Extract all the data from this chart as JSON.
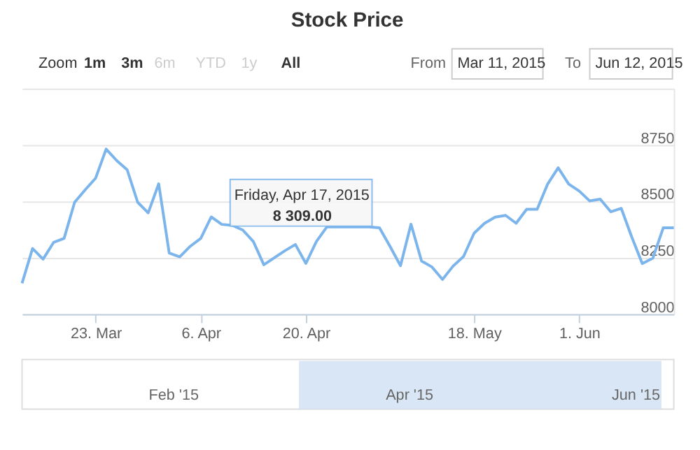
{
  "chart_data": {
    "type": "line",
    "title": "Stock Price",
    "categories": [
      null,
      null,
      null,
      null,
      null,
      null,
      null,
      "23. Mar",
      null,
      null,
      null,
      null,
      null,
      null,
      null,
      null,
      null,
      "6. Apr",
      null,
      null,
      null,
      null,
      null,
      null,
      null,
      null,
      null,
      "20. Apr",
      null,
      null,
      null,
      null,
      null,
      null,
      null,
      null,
      null,
      null,
      null,
      null,
      null,
      null,
      null,
      "18. May",
      null,
      null,
      null,
      null,
      null,
      null,
      null,
      null,
      null,
      "1. Jun",
      null,
      null,
      null,
      null,
      null,
      null,
      null,
      null,
      null
    ],
    "series": [
      {
        "color": "#7cb5ec",
        "values": [
          8137,
          8291,
          8244,
          8318,
          8336,
          8496,
          8551,
          8603,
          8732,
          8681,
          8640,
          8496,
          8449,
          8578,
          8271,
          8254,
          8301,
          8336,
          8431,
          8398,
          8394,
          8373,
          8322,
          8219,
          8250,
          8281,
          8309,
          8225,
          8322,
          8387,
          8387,
          8387,
          8387,
          8387,
          8383,
          8301,
          8215,
          8399,
          8236,
          8209,
          8154,
          8213,
          8256,
          8359,
          8403,
          8430,
          8438,
          8403,
          8465,
          8465,
          8577,
          8649,
          8577,
          8546,
          8502,
          8510,
          8454,
          8469,
          8342,
          8224,
          8248,
          8383,
          8383
        ]
      }
    ],
    "ylim": [
      8000,
      9000
    ],
    "yticks": [
      8000,
      8250,
      8500,
      8750,
      {
        "value": 9000,
        "label": null
      }
    ],
    "grid": "y",
    "marker": "none",
    "line_style": "solid",
    "annotations": [
      "Zoom",
      "1m",
      "3m",
      "6m",
      "YTD",
      "1y",
      "All",
      "From",
      "Mar 11, 2015",
      "To",
      "Jun 12, 2015",
      "Friday, Apr 17, 2015",
      "8 309.00",
      "Feb '15",
      "Apr '15",
      "Jun '15"
    ]
  }
}
